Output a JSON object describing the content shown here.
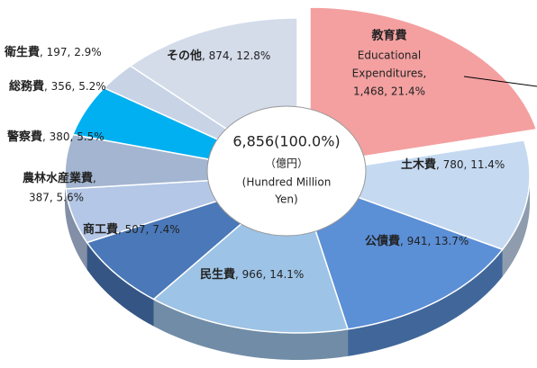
{
  "chart_data": {
    "type": "pie",
    "categories": [
      "教育費",
      "土木費",
      "公債費",
      "民生費",
      "商工費",
      "農林水産業費",
      "警察費",
      "総務費",
      "衛生費",
      "その他"
    ],
    "values": [
      1468,
      780,
      941,
      966,
      507,
      387,
      380,
      356,
      197,
      874
    ],
    "value_labels": [
      "1,468, 21.4%",
      "780, 11.4%",
      "941, 13.7%",
      "966, 14.1%",
      "507, 7.4%",
      "387, 5.6%",
      "380, 5.5%",
      "356, 5.2%",
      "197, 2.9%",
      "874, 12.8%"
    ],
    "separator": ", ",
    "colors": [
      "#f4a0a0",
      "#c5d9f1",
      "#5b8fd6",
      "#9dc3e6",
      "#4a78b8",
      "#b4c7e7",
      "#a3b5d0",
      "#00b0f0",
      "#c8d3e6",
      "#d4dcea"
    ],
    "annotation_lines": [
      "Educational",
      "Expenditures,"
    ],
    "total_label": "6,856(100.0%)",
    "unit_label": "（億円）",
    "unit_lines": [
      "(Hundred Million",
      "Yen)"
    ]
  }
}
